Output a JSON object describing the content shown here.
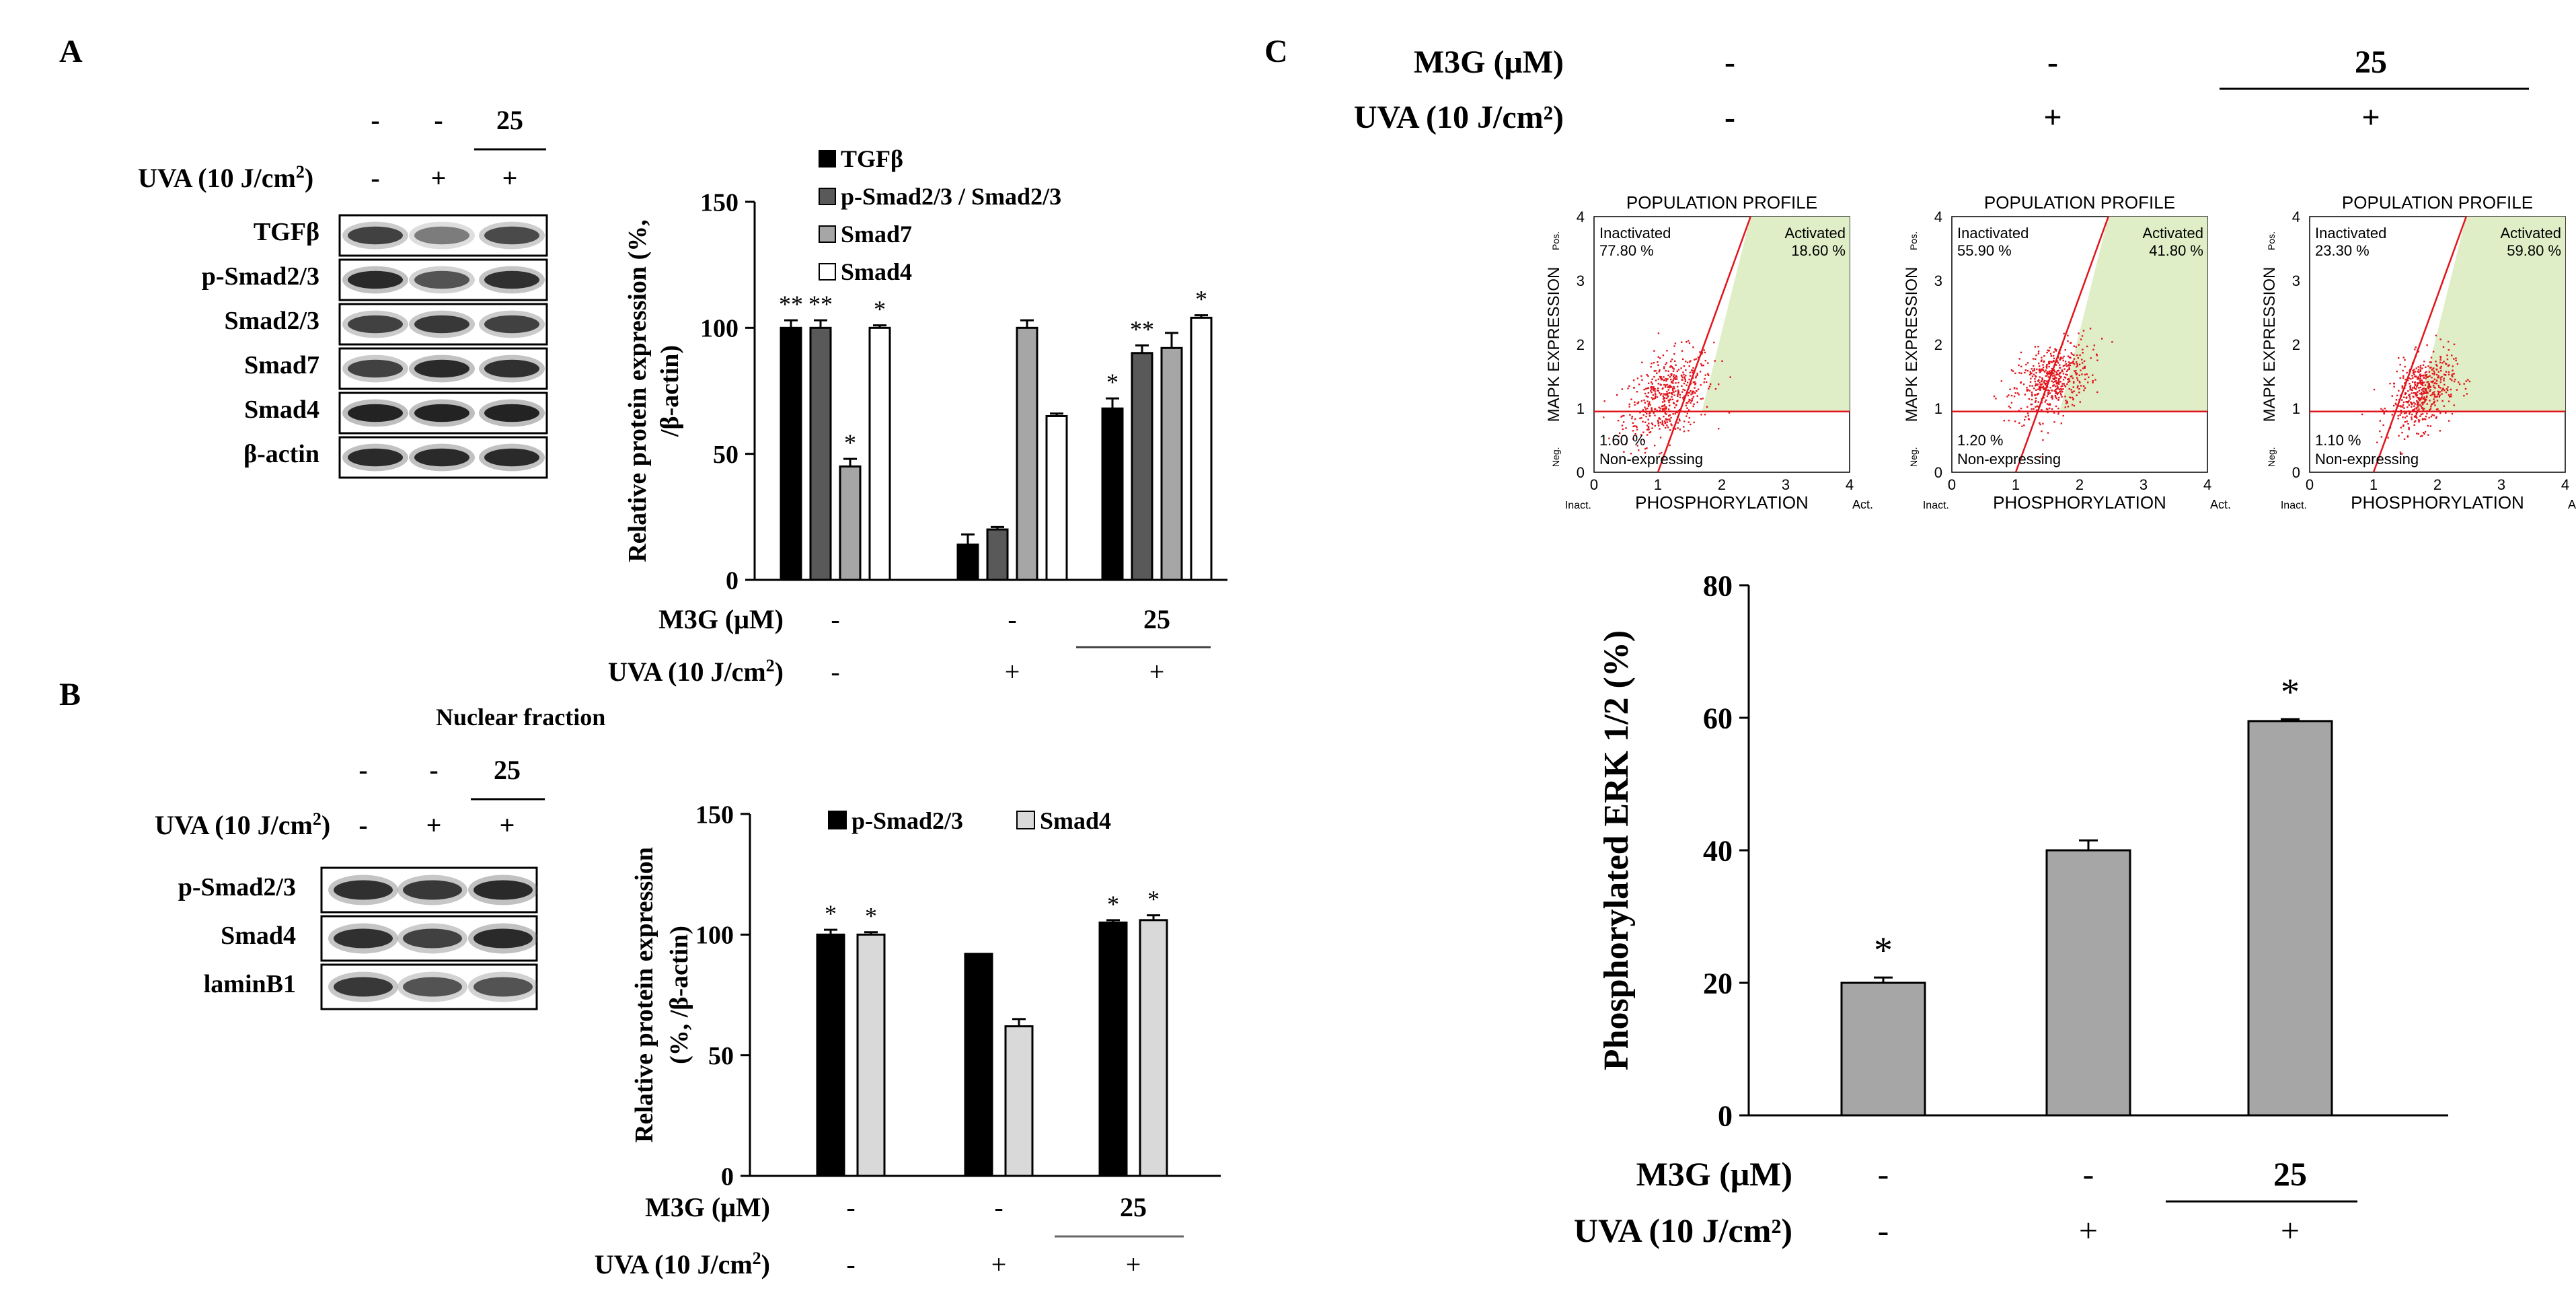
{
  "panels": {
    "a": "A",
    "b": "B",
    "c": "C"
  },
  "conditions": {
    "m3g_label": "M3G  (μM)",
    "m3g_label_c": "M3G (μM)",
    "uva_label": "UVA (10 J/cm",
    "uva_label_c": "UVA (10 J/cm²)",
    "m3g_values": [
      "-",
      "-",
      "25"
    ],
    "uva_values": [
      "-",
      "+",
      "+"
    ]
  },
  "blot_a": {
    "bands": [
      "TGFβ",
      "p-Smad2/3",
      "Smad2/3",
      "Smad7",
      "Smad4",
      "β-actin"
    ]
  },
  "blot_b": {
    "title": "Nuclear fraction",
    "bands": [
      "p-Smad2/3",
      "Smad4",
      "laminB1"
    ]
  },
  "flow": {
    "title": "POPULATION PROFILE",
    "xlabel_left": "Inact.",
    "xlabel": "PHOSPHORYLATION",
    "xlabel_right": "Act.",
    "ylabel_bottom": "Neg.",
    "ylabel": "MAPK EXPRESSION",
    "ylabel_top": "Pos.",
    "ticks": [
      "0",
      "1",
      "2",
      "3",
      "4"
    ],
    "inactivated_label": "Inactivated",
    "activated_label": "Activated",
    "nonexp_label": "Non-expressing",
    "plots": [
      {
        "inactivated": "77.80 %",
        "activated": "18.60 %",
        "nonexp": "1.60 %"
      },
      {
        "inactivated": "55.90 %",
        "activated": "41.80 %",
        "nonexp": "1.20 %"
      },
      {
        "inactivated": "23.30 %",
        "activated": "59.80 %",
        "nonexp": "1.10 %"
      }
    ]
  },
  "chart_data": [
    {
      "id": "A",
      "type": "bar",
      "categories": [
        "-/-",
        "-/+",
        "25/+"
      ],
      "series": [
        {
          "name": "TGFβ",
          "color": "#000000",
          "values": [
            100,
            14,
            68
          ],
          "errors": [
            3,
            4,
            4
          ]
        },
        {
          "name": "p-Smad2/3 / Smad2/3",
          "color": "#595959",
          "values": [
            100,
            20,
            90
          ],
          "errors": [
            3,
            1,
            3
          ]
        },
        {
          "name": "Smad7",
          "color": "#a6a6a6",
          "values": [
            45,
            100,
            92
          ],
          "errors": [
            3,
            3,
            6
          ]
        },
        {
          "name": "Smad4",
          "color": "#ffffff",
          "values": [
            100,
            65,
            104
          ],
          "errors": [
            1,
            1,
            1
          ]
        }
      ],
      "annotations": [
        [
          "**",
          "**",
          "*",
          "*"
        ],
        [
          "",
          "",
          "",
          ""
        ],
        [
          "*",
          "**",
          "",
          "*"
        ]
      ],
      "ylabel": "Relative  protein  expression (%, /β-actin)",
      "ylim": [
        0,
        150
      ],
      "yticks": [
        0,
        50,
        100,
        150
      ]
    },
    {
      "id": "B",
      "type": "bar",
      "categories": [
        "-/-",
        "-/+",
        "25/+"
      ],
      "series": [
        {
          "name": "p-Smad2/3",
          "color": "#000000",
          "values": [
            100,
            92,
            105
          ],
          "errors": [
            2,
            0,
            1
          ]
        },
        {
          "name": "Smad4",
          "color": "#d9d9d9",
          "values": [
            100,
            62,
            106
          ],
          "errors": [
            1,
            3,
            2
          ]
        }
      ],
      "annotations": [
        [
          "*",
          "*"
        ],
        [
          "",
          ""
        ],
        [
          "*",
          "*"
        ]
      ],
      "ylabel": "Relative  protein  expression (%, /β-actin)",
      "ylim": [
        0,
        150
      ],
      "yticks": [
        0,
        50,
        100,
        150
      ]
    },
    {
      "id": "C",
      "type": "bar",
      "categories": [
        "-/-",
        "-/+",
        "25/+"
      ],
      "series": [
        {
          "name": "Phosphorylated ERK 1/2",
          "color": "#a6a6a6",
          "values": [
            20,
            40,
            59.5
          ],
          "errors": [
            0.8,
            1.5,
            0.3
          ]
        }
      ],
      "annotations": [
        [
          "*"
        ],
        [
          ""
        ],
        [
          "*"
        ]
      ],
      "ylabel": "Phosphorylated ERK 1/2 (%)",
      "ylim": [
        0,
        80
      ],
      "yticks": [
        0,
        20,
        40,
        60,
        80
      ]
    }
  ]
}
